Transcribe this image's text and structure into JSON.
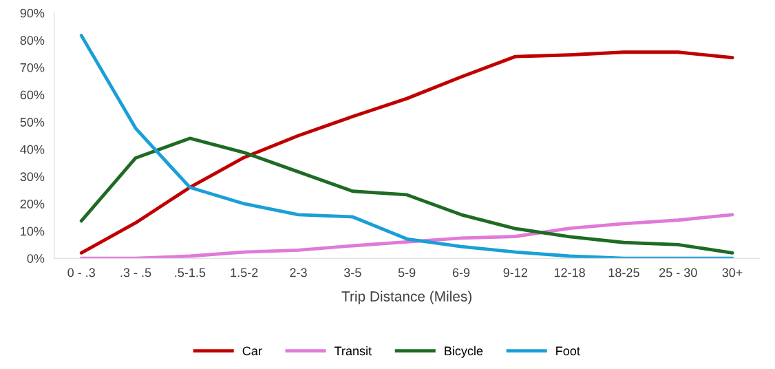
{
  "chart_data": {
    "type": "line",
    "xlabel": "Trip Distance (Miles)",
    "categories": [
      "0 - .3",
      ".3 - .5",
      ".5-1.5",
      "1.5-2",
      "2-3",
      "3-5",
      "5-9",
      "6-9",
      "9-12",
      "12-18",
      "18-25",
      "25 - 30",
      "30+"
    ],
    "series": [
      {
        "name": "Car",
        "color": "#c00000",
        "values": [
          2,
          13,
          26,
          37,
          45,
          52,
          58.6,
          66.5,
          74,
          74.6,
          75.6,
          75.6,
          73.6
        ]
      },
      {
        "name": "Transit",
        "color": "#e07ad8",
        "values": [
          0,
          0,
          0.8,
          2.3,
          3,
          4.6,
          6,
          7.4,
          8,
          11,
          12.7,
          14,
          16
        ]
      },
      {
        "name": "Bicycle",
        "color": "#1e6b24",
        "values": [
          13.7,
          36.8,
          44,
          38.8,
          31.7,
          24.6,
          23.3,
          16,
          10.9,
          7.9,
          5.8,
          5,
          2
        ]
      },
      {
        "name": "Foot",
        "color": "#1a9fd6",
        "values": [
          81.7,
          47.7,
          26,
          20,
          16,
          15.2,
          7.1,
          4.3,
          2.3,
          0.8,
          0,
          0,
          0
        ]
      }
    ],
    "ylim": [
      0,
      90
    ],
    "yticks": [
      {
        "value": 0,
        "label": "0%"
      },
      {
        "value": 10,
        "label": "10%"
      },
      {
        "value": 20,
        "label": "20%"
      },
      {
        "value": 30,
        "label": "30%"
      },
      {
        "value": 40,
        "label": "40%"
      },
      {
        "value": 50,
        "label": "50%"
      },
      {
        "value": 60,
        "label": "60%"
      },
      {
        "value": 70,
        "label": "70%"
      },
      {
        "value": 80,
        "label": "80%"
      },
      {
        "value": 90,
        "label": "90%"
      }
    ],
    "grid": false,
    "legend": "bottom",
    "marker": "none",
    "line_style": "solid"
  }
}
